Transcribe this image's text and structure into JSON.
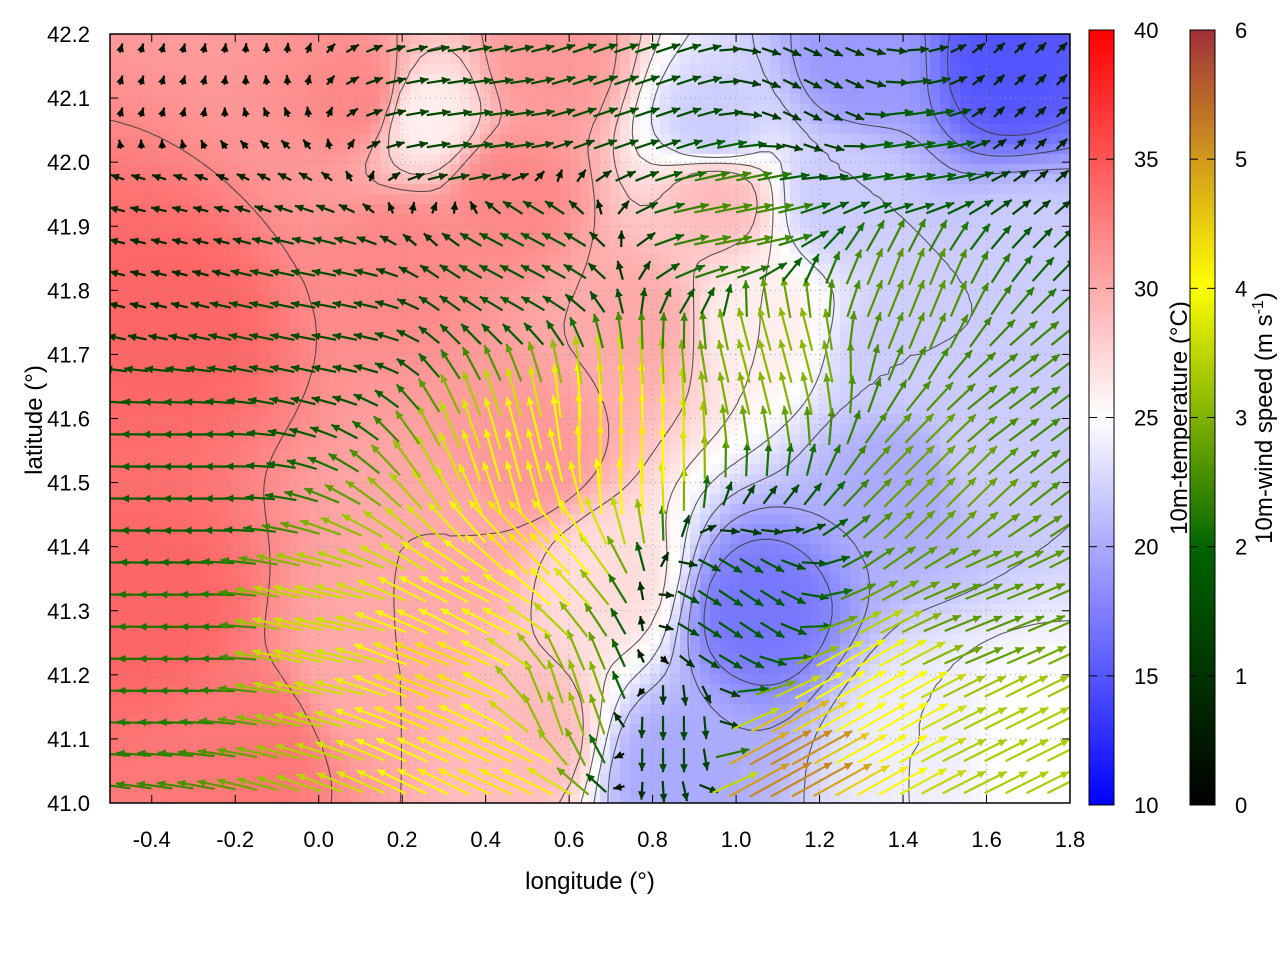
{
  "chart_data": {
    "type": "heatmap",
    "title": "",
    "xlabel": "longitude (°)",
    "ylabel": "latitude (°)",
    "xlim": [
      -0.5,
      1.8
    ],
    "ylim": [
      41.0,
      42.2
    ],
    "x_ticks": [
      -0.4,
      -0.2,
      0.0,
      0.2,
      0.4,
      0.6,
      0.8,
      1.0,
      1.2,
      1.4,
      1.6,
      1.8
    ],
    "x_tick_labels": [
      "-0.4",
      "-0.2",
      "0.0",
      "0.2",
      "0.4",
      "0.6",
      "0.8",
      "1.0",
      "1.2",
      "1.4",
      "1.6",
      "1.8"
    ],
    "y_ticks": [
      41.0,
      41.1,
      41.2,
      41.3,
      41.4,
      41.5,
      41.6,
      41.7,
      41.8,
      41.9,
      42.0,
      42.1,
      42.2
    ],
    "y_tick_labels": [
      "41.0",
      "41.1",
      "41.2",
      "41.3",
      "41.4",
      "41.5",
      "41.6",
      "41.7",
      "41.8",
      "41.9",
      "42.0",
      "42.1",
      "42.2"
    ],
    "grid": true,
    "temperature_field": {
      "label": "10m-temperature (°C)",
      "range": [
        10,
        40
      ],
      "colors": [
        "#0000ff",
        "#ffffff",
        "#ff0000"
      ],
      "ticks": [
        10,
        15,
        20,
        25,
        30,
        35,
        40
      ],
      "tick_labels": [
        "10",
        "15",
        "20",
        "25",
        "30",
        "35",
        "40"
      ],
      "centers": [
        {
          "lon": -0.35,
          "lat": 41.75,
          "value": 34
        },
        {
          "lon": -0.4,
          "lat": 41.3,
          "value": 34
        },
        {
          "lon": -0.15,
          "lat": 41.1,
          "value": 33
        },
        {
          "lon": 0.2,
          "lat": 41.85,
          "value": 32
        },
        {
          "lon": 0.45,
          "lat": 41.95,
          "value": 32
        },
        {
          "lon": 0.55,
          "lat": 42.15,
          "value": 31
        },
        {
          "lon": 0.1,
          "lat": 42.1,
          "value": 32
        },
        {
          "lon": 0.5,
          "lat": 41.55,
          "value": 31
        },
        {
          "lon": 0.3,
          "lat": 41.4,
          "value": 30
        },
        {
          "lon": 0.1,
          "lat": 41.2,
          "value": 30
        },
        {
          "lon": 0.5,
          "lat": 41.1,
          "value": 29
        },
        {
          "lon": 0.75,
          "lat": 41.75,
          "value": 30
        },
        {
          "lon": 0.7,
          "lat": 41.35,
          "value": 27
        },
        {
          "lon": 0.25,
          "lat": 42.07,
          "value": 26
        },
        {
          "lon": 0.95,
          "lat": 41.95,
          "value": 29
        },
        {
          "lon": 1.05,
          "lat": 41.75,
          "value": 26
        },
        {
          "lon": 1.05,
          "lat": 41.3,
          "value": 17
        },
        {
          "lon": 0.85,
          "lat": 41.05,
          "value": 20
        },
        {
          "lon": 1.4,
          "lat": 41.5,
          "value": 20
        },
        {
          "lon": 1.4,
          "lat": 41.7,
          "value": 22
        },
        {
          "lon": 1.6,
          "lat": 41.55,
          "value": 22
        },
        {
          "lon": 1.65,
          "lat": 42.15,
          "value": 15
        },
        {
          "lon": 1.3,
          "lat": 42.15,
          "value": 19
        },
        {
          "lon": 1.7,
          "lat": 41.85,
          "value": 22
        },
        {
          "lon": 1.45,
          "lat": 41.1,
          "value": 24
        },
        {
          "lon": 1.7,
          "lat": 41.1,
          "value": 25
        },
        {
          "lon": 1.25,
          "lat": 41.95,
          "value": 22
        },
        {
          "lon": 0.95,
          "lat": 42.05,
          "value": 22
        }
      ]
    },
    "wind_field": {
      "label": "10m-wind speed (m s",
      "label_superscript": "-1",
      "label_suffix": ")",
      "range": [
        0,
        6
      ],
      "colors": [
        "#000000",
        "#006400",
        "#ffff00",
        "#a0303a"
      ],
      "ticks": [
        0,
        1,
        2,
        3,
        4,
        5,
        6
      ],
      "tick_labels": [
        "0",
        "1",
        "2",
        "3",
        "4",
        "5",
        "6"
      ],
      "grid_spacing_deg": [
        0.05,
        0.05
      ],
      "sources": [
        {
          "lon": -0.4,
          "lat": 41.9,
          "u": -0.8,
          "v": 0.2
        },
        {
          "lon": -0.4,
          "lat": 42.1,
          "u": 0.1,
          "v": 0.3
        },
        {
          "lon": -0.3,
          "lat": 41.5,
          "u": -1.8,
          "v": 0.0
        },
        {
          "lon": -0.3,
          "lat": 41.25,
          "u": -2.2,
          "v": 0.0
        },
        {
          "lon": 0.0,
          "lat": 41.75,
          "u": -1.5,
          "v": 0.3
        },
        {
          "lon": 0.0,
          "lat": 41.25,
          "u": -3.5,
          "v": 0.8
        },
        {
          "lon": 0.3,
          "lat": 41.2,
          "u": -4.0,
          "v": 1.6
        },
        {
          "lon": 0.4,
          "lat": 41.3,
          "u": -3.5,
          "v": 1.8
        },
        {
          "lon": 0.5,
          "lat": 41.5,
          "u": -1.0,
          "v": 3.8
        },
        {
          "lon": 0.5,
          "lat": 41.4,
          "u": -3.0,
          "v": 3.0
        },
        {
          "lon": 0.7,
          "lat": 41.55,
          "u": 0.0,
          "v": 4.2
        },
        {
          "lon": 0.6,
          "lat": 41.15,
          "u": -1.0,
          "v": 3.0
        },
        {
          "lon": 0.45,
          "lat": 41.05,
          "u": -3.8,
          "v": 1.8
        },
        {
          "lon": 0.5,
          "lat": 41.85,
          "u": -1.5,
          "v": 0.8
        },
        {
          "lon": 0.4,
          "lat": 42.05,
          "u": 1.5,
          "v": 0.2
        },
        {
          "lon": 0.75,
          "lat": 42.1,
          "u": 1.5,
          "v": 0.5
        },
        {
          "lon": 1.0,
          "lat": 41.9,
          "u": 2.5,
          "v": 0.5
        },
        {
          "lon": 1.2,
          "lat": 42.1,
          "u": 1.0,
          "v": -0.5
        },
        {
          "lon": 1.1,
          "lat": 41.7,
          "u": -0.8,
          "v": 3.0
        },
        {
          "lon": 1.4,
          "lat": 41.8,
          "u": 1.0,
          "v": 2.5
        },
        {
          "lon": 1.5,
          "lat": 41.5,
          "u": 2.0,
          "v": 2.0
        },
        {
          "lon": 1.7,
          "lat": 41.6,
          "u": 2.0,
          "v": 1.5
        },
        {
          "lon": 1.0,
          "lat": 41.3,
          "u": 1.5,
          "v": -1.0
        },
        {
          "lon": 0.85,
          "lat": 41.1,
          "u": 0.0,
          "v": -1.5
        },
        {
          "lon": 1.1,
          "lat": 41.05,
          "u": 4.5,
          "v": 2.5
        },
        {
          "lon": 1.3,
          "lat": 41.15,
          "u": 3.5,
          "v": 2.0
        },
        {
          "lon": 1.65,
          "lat": 41.1,
          "u": 3.0,
          "v": 1.5
        },
        {
          "lon": 1.6,
          "lat": 41.3,
          "u": 2.5,
          "v": 1.0
        },
        {
          "lon": 1.7,
          "lat": 42.1,
          "u": 0.5,
          "v": 0.5
        },
        {
          "lon": 1.4,
          "lat": 42.0,
          "u": 2.0,
          "v": 0.3
        }
      ]
    }
  }
}
